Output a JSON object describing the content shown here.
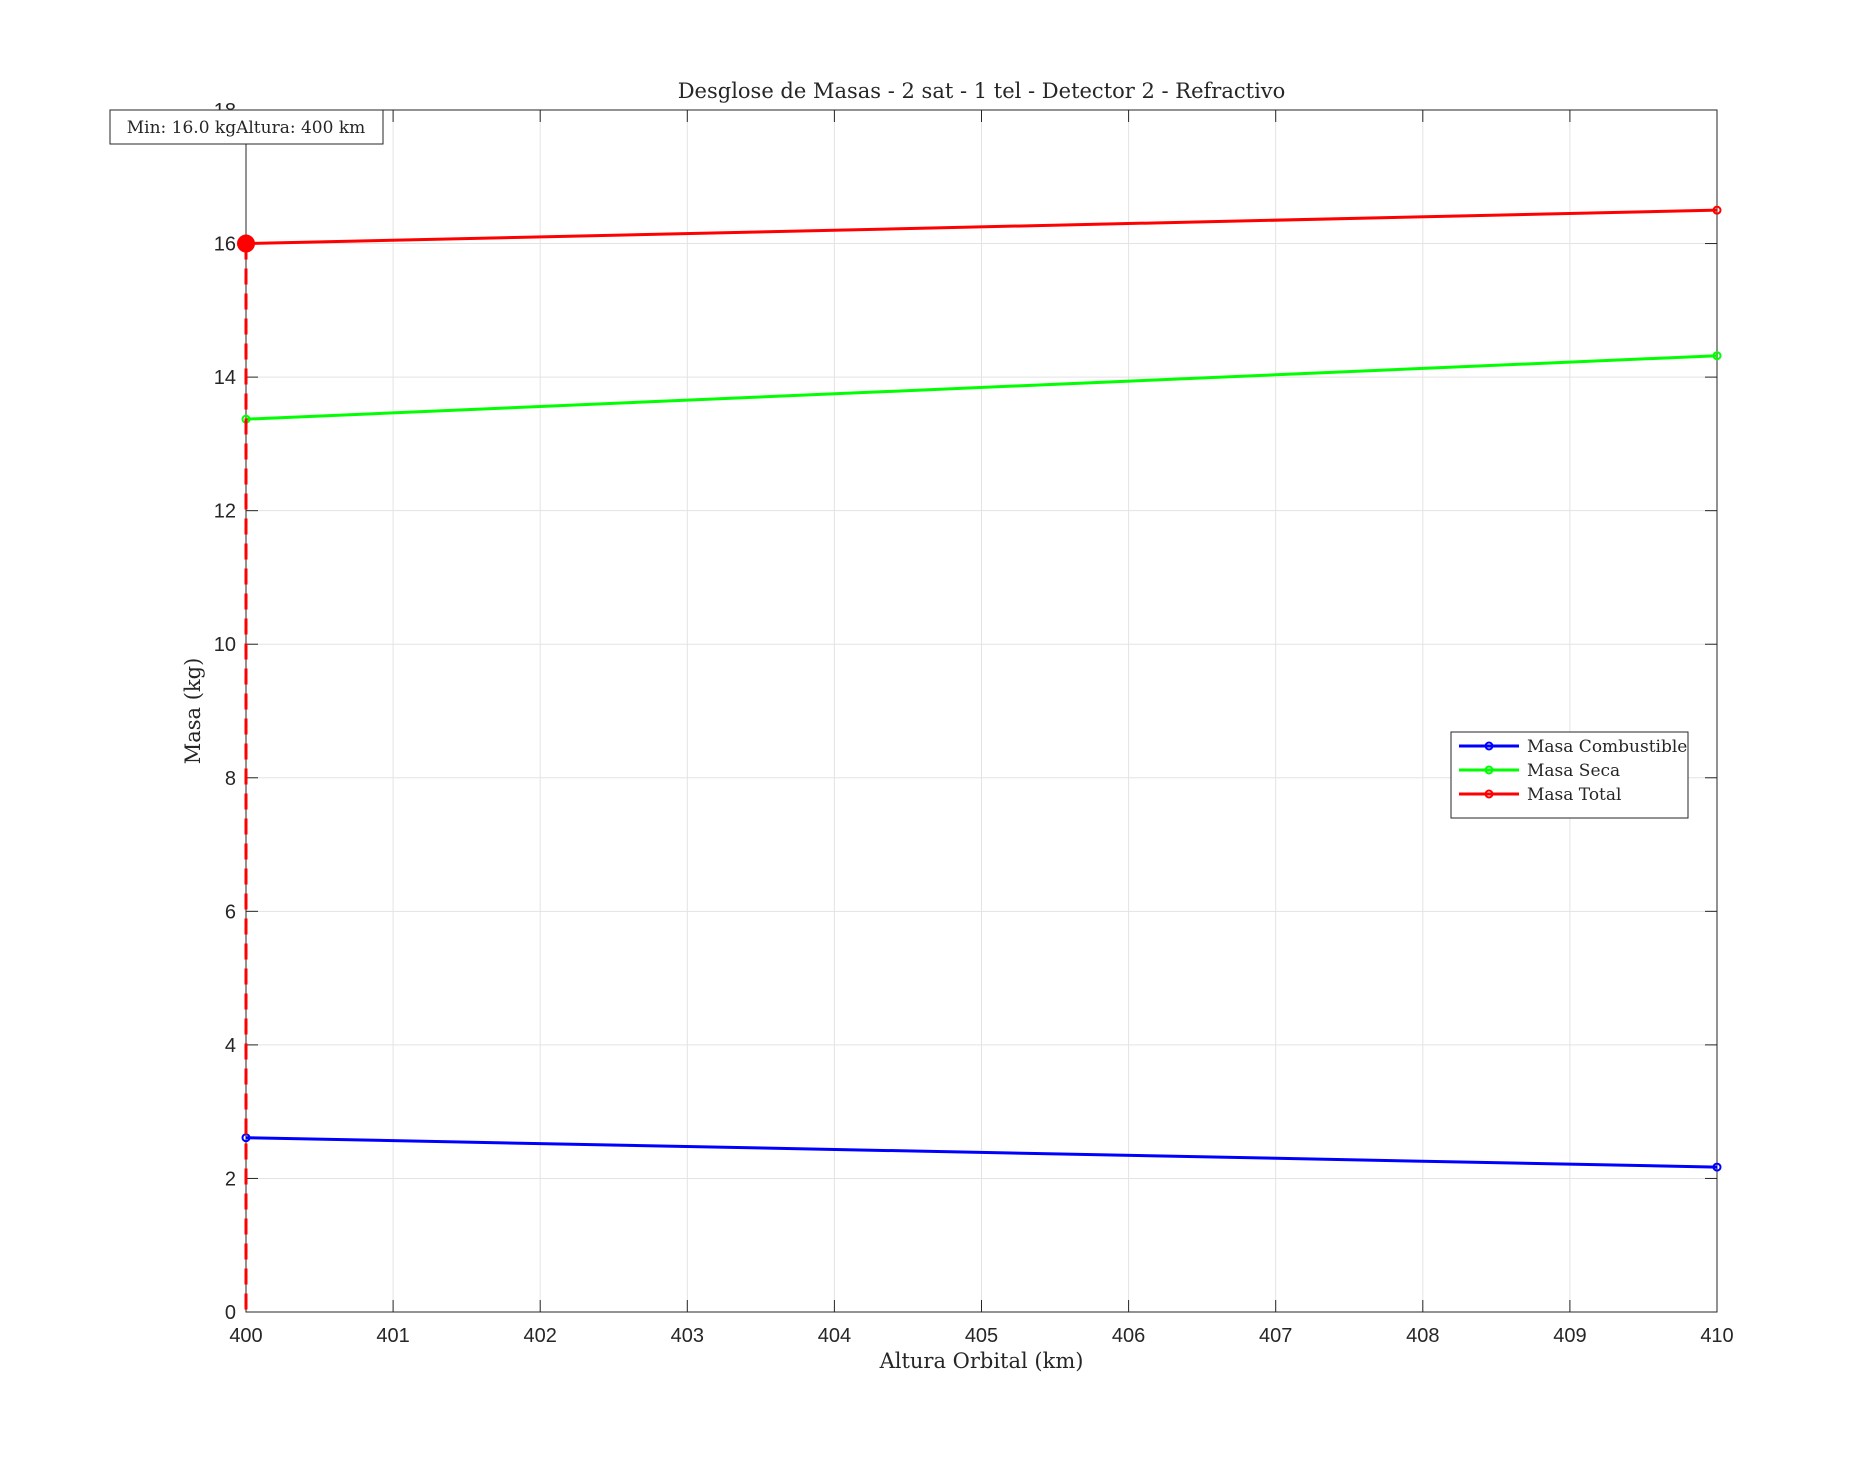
{
  "chart_data": {
    "type": "line",
    "title": "Desglose de Masas - 2 sat - 1 tel - Detector 2 - Refractivo",
    "xlabel": "Altura Orbital (km)",
    "ylabel": "Masa (kg)",
    "xlim": [
      400,
      410
    ],
    "ylim": [
      0,
      18
    ],
    "xticks": [
      "400",
      "401",
      "402",
      "403",
      "404",
      "405",
      "406",
      "407",
      "408",
      "409",
      "410"
    ],
    "yticks": [
      "0",
      "2",
      "4",
      "6",
      "8",
      "10",
      "12",
      "14",
      "16",
      "18"
    ],
    "grid": true,
    "legend_position": "right",
    "series": [
      {
        "name": "Masa Combustible",
        "color": "#0000ff",
        "x": [
          400,
          410
        ],
        "y": [
          2.61,
          2.17
        ]
      },
      {
        "name": "Masa Seca",
        "color": "#00ff00",
        "x": [
          400,
          410
        ],
        "y": [
          13.37,
          14.32
        ]
      },
      {
        "name": "Masa Total",
        "color": "#ff0000",
        "x": [
          400,
          410
        ],
        "y": [
          16.0,
          16.5
        ]
      }
    ],
    "annotation": {
      "text": "Min: 16.0 kgAltura: 400 km",
      "x": 400,
      "y": 16.0,
      "marker_color": "#ff0000"
    }
  }
}
